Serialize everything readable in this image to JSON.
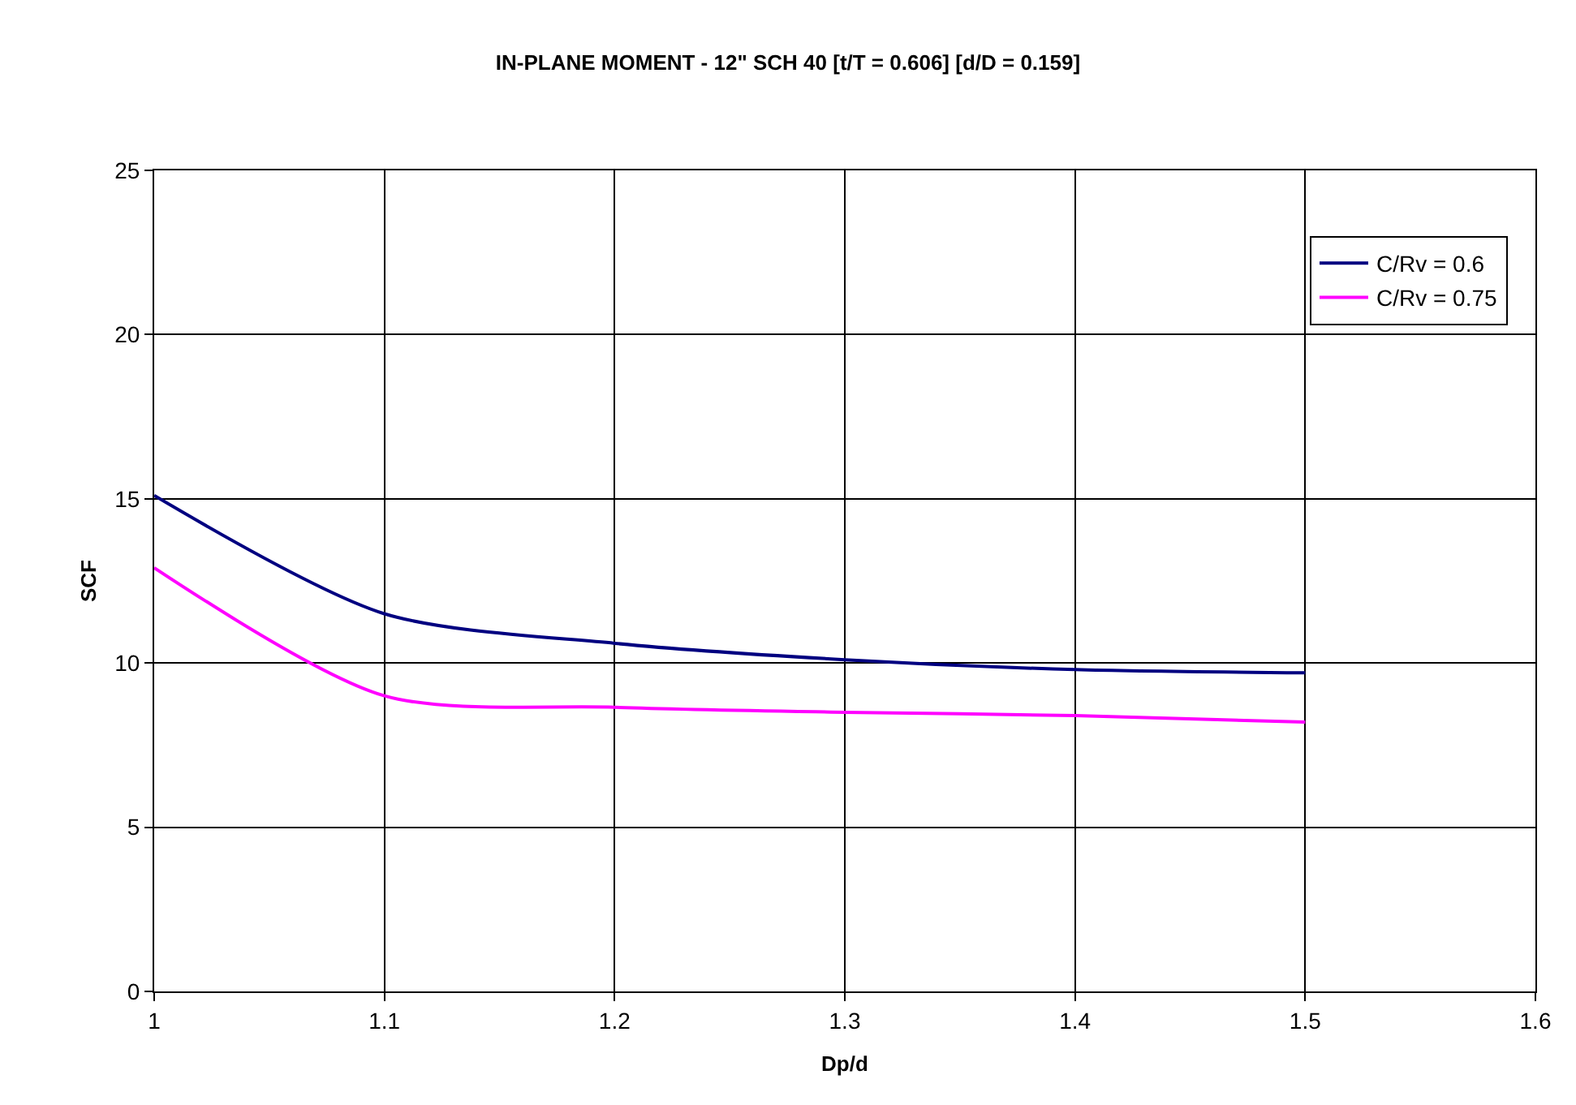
{
  "chart_data": {
    "type": "line",
    "title": "IN-PLANE MOMENT - 12\" SCH 40 [t/T = 0.606] [d/D = 0.159]",
    "xlabel": "Dp/d",
    "ylabel": "SCF",
    "x": [
      1,
      1.1,
      1.2,
      1.3,
      1.4,
      1.5
    ],
    "series": [
      {
        "name": "C/Rv = 0.6",
        "color": "#000080",
        "values": [
          15.1,
          11.5,
          10.6,
          10.1,
          9.8,
          9.7
        ]
      },
      {
        "name": "C/Rv = 0.75",
        "color": "#ff00ff",
        "values": [
          12.9,
          9.0,
          8.65,
          8.5,
          8.4,
          8.2
        ]
      }
    ],
    "xlim": [
      1,
      1.6
    ],
    "xticks": [
      1,
      1.1,
      1.2,
      1.3,
      1.4,
      1.5,
      1.6
    ],
    "ylim": [
      0,
      25
    ],
    "yticks": [
      0,
      5,
      10,
      15,
      20,
      25
    ],
    "grid": true,
    "legend": "top right",
    "marker": "none",
    "line_style": "solid"
  }
}
